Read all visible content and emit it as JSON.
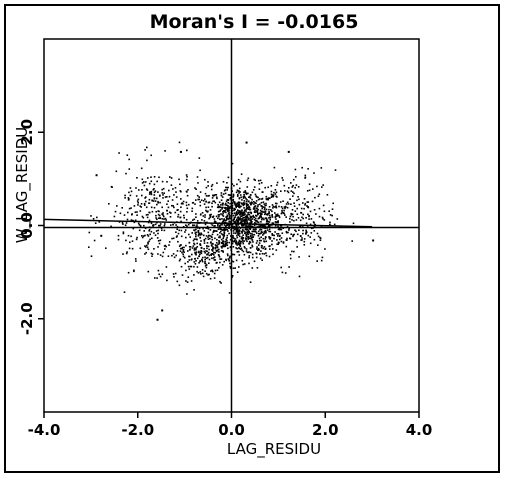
{
  "chart_data": {
    "type": "scatter",
    "title": "Moran's I = -0.0165",
    "xlabel": "LAG_RESIDU",
    "ylabel": "W_LAG_RESIDU",
    "xlim": [
      -4.0,
      4.0
    ],
    "ylim": [
      -4.0,
      4.0
    ],
    "x_ticks": [
      "-4.0",
      "-2.0",
      "0.0",
      "2.0",
      "4.0"
    ],
    "y_ticks": [
      "2.0",
      "0.0",
      "-2.0"
    ],
    "grid": false,
    "regression_slope": -0.0165,
    "point_count_approx": 2000,
    "clusters": [
      {
        "center": [
          0.2,
          0.1
        ],
        "spread": [
          0.45,
          0.38
        ],
        "weight": 0.55
      },
      {
        "center": [
          -1.6,
          0.2
        ],
        "spread": [
          0.55,
          0.55
        ],
        "weight": 0.2
      },
      {
        "center": [
          1.3,
          0.2
        ],
        "spread": [
          0.45,
          0.5
        ],
        "weight": 0.13
      },
      {
        "center": [
          -0.6,
          -0.55
        ],
        "spread": [
          0.35,
          0.3
        ],
        "weight": 0.12
      }
    ],
    "outliers": [
      [
        -1.6,
        -2.0
      ],
      [
        -1.5,
        -1.8
      ],
      [
        0.3,
        1.8
      ],
      [
        1.2,
        1.6
      ],
      [
        -1.1,
        1.6
      ],
      [
        -2.9,
        1.1
      ],
      [
        3.0,
        -0.3
      ],
      [
        -2.8,
        -0.2
      ]
    ]
  }
}
